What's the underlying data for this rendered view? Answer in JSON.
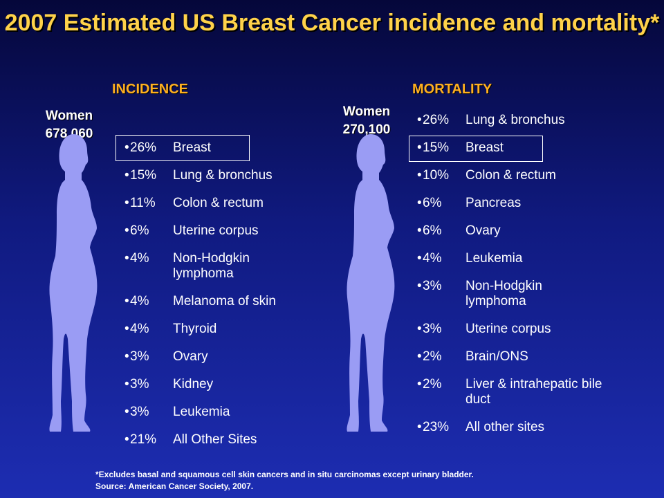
{
  "title": "2007 Estimated US Breast Cancer incidence and mortality*",
  "incidence": {
    "heading": "INCIDENCE",
    "women_label": "Women",
    "women_count": "678,060",
    "items": [
      {
        "bullet": "•",
        "pct": "26%",
        "site": "Breast"
      },
      {
        "bullet": "•",
        "pct": "15%",
        "site": "Lung & bronchus"
      },
      {
        "bullet": "•",
        "pct": "11%",
        "site": "Colon & rectum"
      },
      {
        "bullet": "•",
        "pct": "6%",
        "site": "Uterine corpus"
      },
      {
        "bullet": "•",
        "pct": "4%",
        "site": "Non-Hodgkin lymphoma"
      },
      {
        "bullet": "•",
        "pct": "4%",
        "site": "Melanoma of skin"
      },
      {
        "bullet": "•",
        "pct": "4%",
        "site": "Thyroid"
      },
      {
        "bullet": "•",
        "pct": "3%",
        "site": "Ovary"
      },
      {
        "bullet": "•",
        "pct": "3%",
        "site": "Kidney"
      },
      {
        "bullet": "•",
        "pct": "3%",
        "site": "Leukemia"
      },
      {
        "bullet": "•",
        "pct": "21%",
        "site": "All Other Sites"
      }
    ]
  },
  "mortality": {
    "heading": "MORTALITY",
    "women_label": "Women",
    "women_count": "270,100",
    "items": [
      {
        "bullet": "•",
        "pct": "26%",
        "site": "Lung & bronchus"
      },
      {
        "bullet": "•",
        "pct": "15%",
        "site": "Breast"
      },
      {
        "bullet": "•",
        "pct": "10%",
        "site": "Colon & rectum"
      },
      {
        "bullet": "•",
        "pct": "6%",
        "site": "Pancreas"
      },
      {
        "bullet": "•",
        "pct": "6%",
        "site": "Ovary"
      },
      {
        "bullet": "•",
        "pct": "4%",
        "site": "Leukemia"
      },
      {
        "bullet": "•",
        "pct": "3%",
        "site": "Non-Hodgkin lymphoma"
      },
      {
        "bullet": "•",
        "pct": "3%",
        "site": "Uterine corpus"
      },
      {
        "bullet": "•",
        "pct": "2%",
        "site": "Brain/ONS"
      },
      {
        "bullet": "•",
        "pct": "2%",
        "site": "Liver & intrahepatic bile duct"
      },
      {
        "bullet": "•",
        "pct": "23%",
        "site": "All other sites"
      }
    ]
  },
  "footnote": {
    "line1": "*Excludes basal and squamous cell skin cancers and in situ carcinomas except urinary bladder.",
    "line2": "Source: American Cancer Society, 2007."
  },
  "colors": {
    "title": "#ffd24a",
    "heading": "#ffb020",
    "silhouette": "#9a9cf4",
    "text": "#ffffff"
  },
  "icons": {
    "figure": "woman-silhouette-icon"
  }
}
